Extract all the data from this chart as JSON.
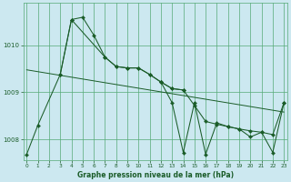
{
  "xlabel": "Graphe pression niveau de la mer (hPa)",
  "x_ticks": [
    0,
    1,
    2,
    3,
    4,
    5,
    6,
    7,
    8,
    9,
    10,
    11,
    12,
    13,
    14,
    15,
    16,
    17,
    18,
    19,
    20,
    21,
    22,
    23
  ],
  "y_ticks": [
    1008,
    1009,
    1010
  ],
  "ylim": [
    1007.55,
    1010.9
  ],
  "xlim": [
    -0.3,
    23.3
  ],
  "bg_color": "#cce8f0",
  "grid_color": "#55aa77",
  "line_color": "#1a5c28",
  "series1_x": [
    0,
    1,
    3,
    4,
    5,
    6,
    7,
    8,
    9,
    10,
    11,
    12,
    13,
    14
  ],
  "series1_y": [
    1007.68,
    1008.3,
    1009.38,
    1010.55,
    1010.6,
    1010.22,
    1009.75,
    1009.55,
    1009.52,
    1009.52,
    1009.38,
    1009.22,
    1009.08,
    1009.05
  ],
  "series2_x": [
    3,
    4,
    7,
    8,
    9,
    10,
    11,
    12,
    13,
    14,
    15,
    16,
    17,
    18,
    19,
    20,
    21,
    22,
    23
  ],
  "series2_y": [
    1009.38,
    1010.55,
    1009.75,
    1009.55,
    1009.52,
    1009.52,
    1009.38,
    1009.22,
    1009.08,
    1009.05,
    1008.72,
    1008.38,
    1008.32,
    1008.27,
    1008.22,
    1008.18,
    1008.15,
    1008.1,
    1008.78
  ],
  "series3_x": [
    12,
    13,
    14,
    15,
    16,
    17,
    18,
    19,
    20,
    21,
    22,
    23
  ],
  "series3_y": [
    1009.22,
    1008.78,
    1007.72,
    1008.78,
    1007.68,
    1008.35,
    1008.27,
    1008.22,
    1008.05,
    1008.15,
    1007.72,
    1008.78
  ],
  "trend_x": [
    0,
    23
  ],
  "trend_y": [
    1009.48,
    1008.58
  ]
}
